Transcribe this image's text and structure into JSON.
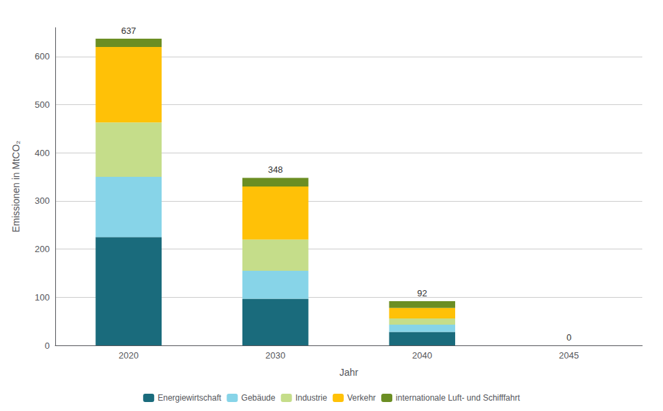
{
  "chart_data": {
    "type": "bar",
    "stacked": true,
    "categories": [
      "2020",
      "2030",
      "2040",
      "2045"
    ],
    "series": [
      {
        "name": "Energiewirtschaft",
        "color": "#1a6b7c",
        "values": [
          225,
          97,
          28,
          0
        ]
      },
      {
        "name": "Gebäude",
        "color": "#87d4e8",
        "values": [
          125,
          58,
          15,
          0
        ]
      },
      {
        "name": "Industrie",
        "color": "#c5dd8a",
        "values": [
          113,
          65,
          13,
          0
        ]
      },
      {
        "name": "Verkehr",
        "color": "#ffc107",
        "values": [
          157,
          110,
          22,
          0
        ]
      },
      {
        "name": "internationale Luft- und Schifffahrt",
        "color": "#6b8e23",
        "values": [
          17,
          18,
          14,
          0
        ]
      }
    ],
    "totals": [
      637,
      348,
      92,
      0
    ],
    "xlabel": "Jahr",
    "ylabel": "Emissionen in MtCO₂",
    "ylim": [
      0,
      660
    ],
    "yticks": [
      0,
      100,
      200,
      300,
      400,
      500,
      600
    ],
    "grid": true,
    "legend": "bottom"
  }
}
